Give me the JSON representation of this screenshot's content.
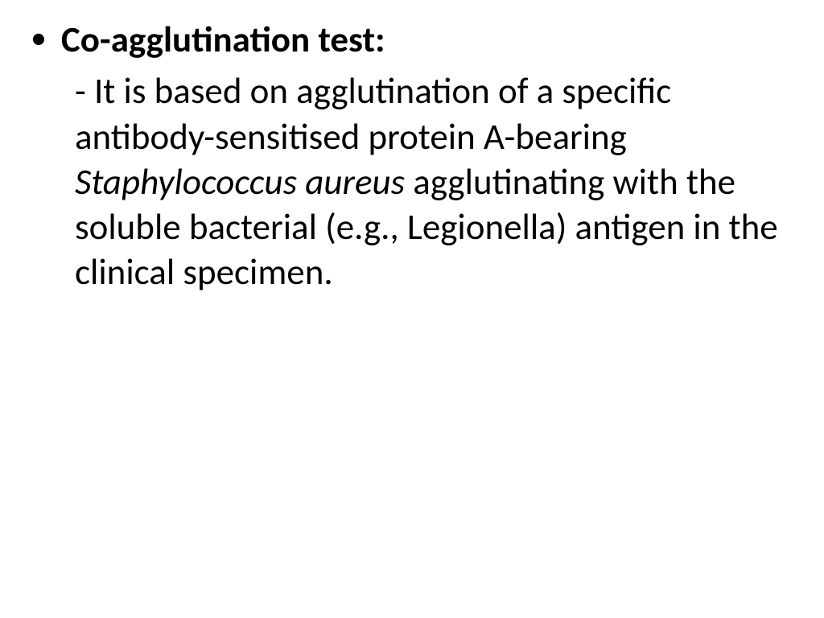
{
  "slide": {
    "background_color": "#ffffff",
    "text_color": "#000000",
    "font_family": "Calibri",
    "heading_fontsize": 45,
    "body_fontsize": 45,
    "bullet_char": "•",
    "heading": "Co-agglutination test:",
    "body_prefix": "-  It is based on agglutination of a specific antibody-sensitised protein A-bearing ",
    "body_italic": "Staphylococcus aureus",
    "body_suffix": " agglutinating with the soluble bacterial (e.g., Legionella) antigen in the clinical specimen."
  }
}
